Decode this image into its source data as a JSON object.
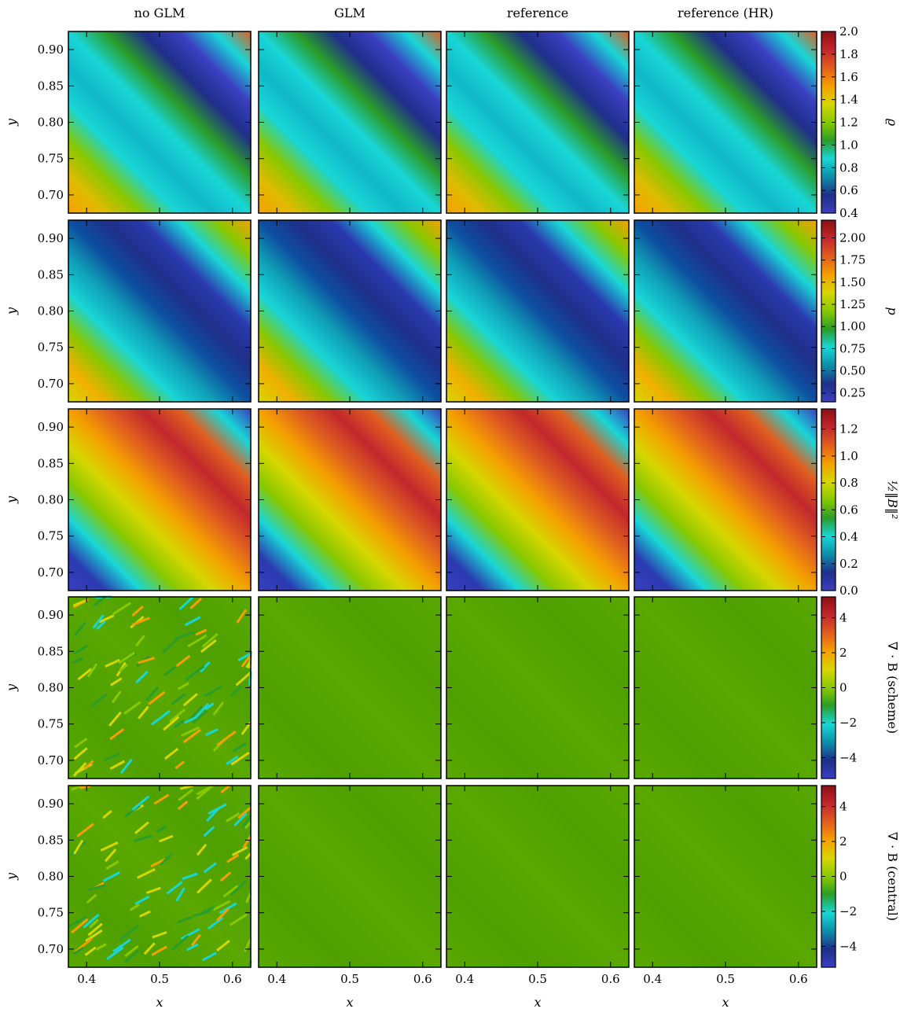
{
  "columns": [
    "no GLM",
    "GLM",
    "reference",
    "reference (HR)"
  ],
  "x_axis": {
    "label": "x",
    "ticks": [
      0.4,
      0.5,
      0.6
    ],
    "tick_labels": [
      "0.4",
      "0.5",
      "0.6"
    ]
  },
  "y_axis": {
    "label": "y",
    "ticks": [
      0.7,
      0.75,
      0.8,
      0.85,
      0.9
    ],
    "tick_labels": [
      "0.70",
      "0.75",
      "0.80",
      "0.85",
      "0.90"
    ]
  },
  "colorscale": [
    "#3a3fc0",
    "#1f2f8a",
    "#0d8fa8",
    "#19d6d6",
    "#2a9d2a",
    "#88c800",
    "#d6d600",
    "#f5a000",
    "#e05e1f",
    "#c1272d",
    "#8b0f14"
  ],
  "chart_data": [
    {
      "type": "heatmap",
      "row": 1,
      "colorbar_label": "ϱ",
      "vrange": [
        0.4,
        2.0
      ],
      "colorbar_ticks": [
        0.4,
        0.6,
        0.8,
        1.0,
        1.2,
        1.4,
        1.6,
        1.8,
        2.0
      ],
      "colorbar_tick_labels": [
        "0.4",
        "0.6",
        "0.8",
        "1.0",
        "1.2",
        "1.4",
        "1.6",
        "1.8",
        "2.0"
      ]
    },
    {
      "type": "heatmap",
      "row": 2,
      "colorbar_label": "p",
      "vrange": [
        0.15,
        2.2
      ],
      "colorbar_ticks": [
        0.25,
        0.5,
        0.75,
        1.0,
        1.25,
        1.5,
        1.75,
        2.0
      ],
      "colorbar_tick_labels": [
        "0.25",
        "0.50",
        "0.75",
        "1.00",
        "1.25",
        "1.50",
        "1.75",
        "2.00"
      ]
    },
    {
      "type": "heatmap",
      "row": 3,
      "colorbar_label": "½‖B‖²",
      "vrange": [
        0.0,
        1.35
      ],
      "colorbar_ticks": [
        0.0,
        0.2,
        0.4,
        0.6,
        0.8,
        1.0,
        1.2
      ],
      "colorbar_tick_labels": [
        "0.0",
        "0.2",
        "0.4",
        "0.6",
        "0.8",
        "1.0",
        "1.2"
      ]
    },
    {
      "type": "heatmap",
      "row": 4,
      "colorbar_label": "∇ · B (scheme)",
      "vrange": [
        -5.2,
        5.2
      ],
      "colorbar_ticks": [
        -4,
        -2,
        0,
        2,
        4
      ],
      "colorbar_tick_labels": [
        "−4",
        "−2",
        "0",
        "2",
        "4"
      ]
    },
    {
      "type": "heatmap",
      "row": 5,
      "colorbar_label": "∇ · B (central)",
      "vrange": [
        -5.2,
        5.2
      ],
      "colorbar_ticks": [
        -4,
        -2,
        0,
        2,
        4
      ],
      "colorbar_tick_labels": [
        "−4",
        "−2",
        "0",
        "2",
        "4"
      ]
    }
  ]
}
